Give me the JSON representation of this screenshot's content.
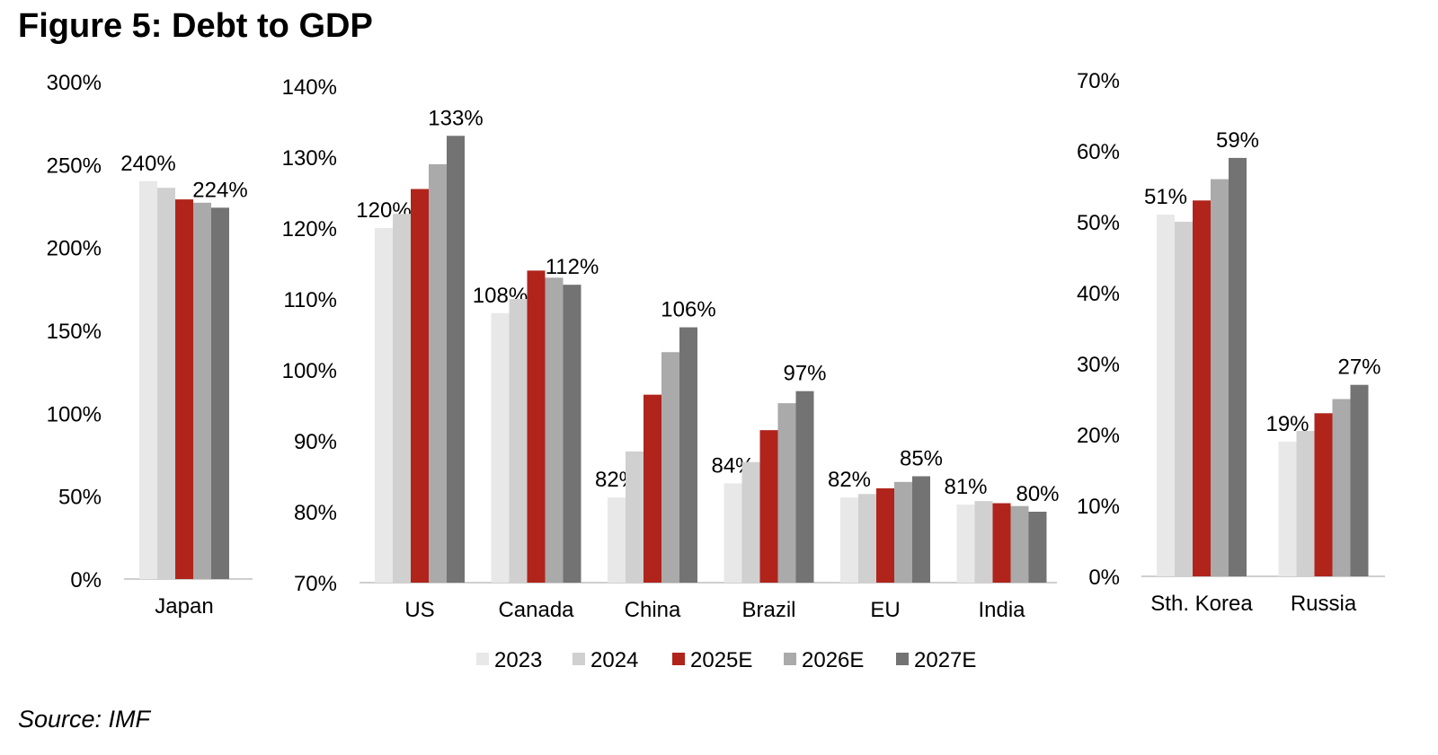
{
  "figure_title": "Figure 5: Debt to GDP",
  "source": "Source: IMF",
  "colors": {
    "2023": "#e8e8e8",
    "2024": "#d0d0d0",
    "2025E": "#b0241c",
    "2026E": "#aaaaaa",
    "2027E": "#737373",
    "axis": "#bfbfbf"
  },
  "chart_data": [
    {
      "type": "bar",
      "title": "Figure 5: Debt to GDP",
      "ylim": [
        0,
        300
      ],
      "ytick_values": [
        0,
        50,
        100,
        150,
        200,
        250,
        300
      ],
      "yticks": [
        "0%",
        "50%",
        "100%",
        "150%",
        "200%",
        "250%",
        "300%"
      ],
      "categories": [
        "Japan"
      ],
      "series": [
        {
          "name": "2023",
          "values": [
            240
          ]
        },
        {
          "name": "2024",
          "values": [
            236
          ]
        },
        {
          "name": "2025E",
          "values": [
            229
          ]
        },
        {
          "name": "2026E",
          "values": [
            227
          ]
        },
        {
          "name": "2027E",
          "values": [
            224
          ]
        }
      ],
      "labels": [
        [
          "240%",
          null,
          null,
          null,
          "224%"
        ]
      ]
    },
    {
      "type": "bar",
      "ylim": [
        70,
        140
      ],
      "ytick_values": [
        70,
        80,
        90,
        100,
        110,
        120,
        130,
        140
      ],
      "yticks": [
        "70%",
        "80%",
        "90%",
        "100%",
        "110%",
        "120%",
        "130%",
        "140%"
      ],
      "categories": [
        "US",
        "Canada",
        "China",
        "Brazil",
        "EU",
        "India"
      ],
      "series": [
        {
          "name": "2023",
          "values": [
            120,
            108,
            82,
            84,
            82,
            81
          ]
        },
        {
          "name": "2024",
          "values": [
            122,
            110,
            88.5,
            87,
            82.5,
            81.5
          ]
        },
        {
          "name": "2025E",
          "values": [
            125.5,
            114,
            96.5,
            91.5,
            83.3,
            81.2
          ]
        },
        {
          "name": "2026E",
          "values": [
            129,
            113,
            102.5,
            95.3,
            84.2,
            80.8
          ]
        },
        {
          "name": "2027E",
          "values": [
            133,
            112,
            106,
            97,
            85,
            80
          ]
        }
      ],
      "labels": [
        [
          "120%",
          null,
          null,
          null,
          "133%"
        ],
        [
          "108%",
          null,
          null,
          null,
          "112%"
        ],
        [
          "82%",
          null,
          null,
          null,
          "106%"
        ],
        [
          "84%",
          null,
          null,
          null,
          "97%"
        ],
        [
          "82%",
          null,
          null,
          null,
          "85%"
        ],
        [
          "81%",
          null,
          null,
          null,
          "80%"
        ]
      ]
    },
    {
      "type": "bar",
      "ylim": [
        0,
        70
      ],
      "ytick_values": [
        0,
        10,
        20,
        30,
        40,
        50,
        60,
        70
      ],
      "yticks": [
        "0%",
        "10%",
        "20%",
        "30%",
        "40%",
        "50%",
        "60%",
        "70%"
      ],
      "categories": [
        "Sth. Korea",
        "Russia"
      ],
      "series": [
        {
          "name": "2023",
          "values": [
            51,
            19
          ]
        },
        {
          "name": "2024",
          "values": [
            50,
            20.5
          ]
        },
        {
          "name": "2025E",
          "values": [
            53,
            23
          ]
        },
        {
          "name": "2026E",
          "values": [
            56,
            25
          ]
        },
        {
          "name": "2027E",
          "values": [
            59,
            27
          ]
        }
      ],
      "labels": [
        [
          "51%",
          null,
          null,
          null,
          "59%"
        ],
        [
          "19%",
          null,
          null,
          null,
          "27%"
        ]
      ]
    }
  ],
  "legend": [
    "2023",
    "2024",
    "2025E",
    "2026E",
    "2027E"
  ]
}
